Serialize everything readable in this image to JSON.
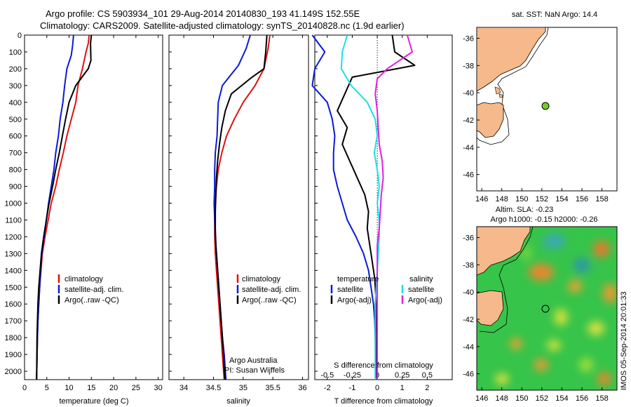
{
  "header": {
    "line1": "Argo profile: CS 5903934_101 29-Aug-2014 20140830_193 41.149S 152.55E",
    "line2": "Climatology: CARS2009. Satellite-adjusted climatology: synTS_20140828.nc (1.9d earlier)"
  },
  "colors": {
    "climatology": "#e01010",
    "satellite": "#0a1ad8",
    "argo": "#000000",
    "sat_salinity": "#18e0e8",
    "argo_salinity_diff": "#e020e0",
    "land": "#f5b98b"
  },
  "panels": {
    "temperature": {
      "xlabel": "temperature (deg C)",
      "legend": [
        "climatology",
        "satellite-adj. clim.",
        "Argo(..raw -QC)"
      ]
    },
    "salinity": {
      "xlabel": "salinity",
      "legend": [
        "climatology",
        "satellite-adj. clim.",
        "Argo(..raw -QC)"
      ],
      "note1": "Argo Australia",
      "note2": "PI: Susan Wijffels"
    },
    "difference": {
      "xlabel": "T difference from climatology",
      "toplabel": "S difference from climatology",
      "legend_t_head": "temperature",
      "legend_s_head": "salinity",
      "legend_t": [
        "satellite",
        "Argo(-adj)"
      ],
      "legend_s": [
        "satellite",
        "Argo(-adj)"
      ]
    }
  },
  "maps": {
    "sst": {
      "title": "sat. SST: NaN Argo: 14.4"
    },
    "sla": {
      "title1": "Altim. SLA: -0.23",
      "title2": "Argo h1000: -0.15 h2000: -0.26"
    },
    "xticks": [
      "146",
      "148",
      "150",
      "152",
      "154",
      "156",
      "158"
    ],
    "yticks": [
      "-36",
      "-38",
      "-40",
      "-42",
      "-44",
      "-46"
    ],
    "float_lon": 152.55,
    "float_lat": -41.149
  },
  "side_label": "IMOS 05-Sep-2014 20:01:33",
  "chart_data": [
    {
      "type": "line",
      "panel": "temperature",
      "ylabel": "",
      "xlim": [
        0,
        31
      ],
      "ylim": [
        2050,
        0
      ],
      "xticks": [
        0,
        5,
        10,
        15,
        20,
        25,
        30
      ],
      "yticks": [
        0,
        100,
        200,
        300,
        400,
        500,
        600,
        700,
        800,
        900,
        1000,
        1100,
        1200,
        1300,
        1400,
        1500,
        1600,
        1700,
        1800,
        1900,
        2000
      ],
      "series": [
        {
          "name": "climatology",
          "x": [
            14.5,
            14.3,
            13.8,
            13.0,
            12.0,
            11.5,
            10.5,
            9.5,
            8.7,
            7.8,
            7.0,
            6.0,
            5.3,
            4.6,
            4.0,
            3.7,
            3.4,
            3.2,
            3.0,
            2.9,
            2.7
          ],
          "y": [
            0,
            50,
            100,
            200,
            300,
            400,
            500,
            600,
            700,
            800,
            900,
            1000,
            1100,
            1200,
            1300,
            1400,
            1500,
            1600,
            1700,
            1800,
            2050
          ]
        },
        {
          "name": "satellite-adj. clim.",
          "x": [
            11.0,
            10.8,
            10.5,
            9.5,
            9.0,
            8.6,
            8.0,
            7.6,
            7.0,
            6.6,
            6.0,
            5.4,
            4.9,
            4.4,
            3.9,
            3.6,
            3.4,
            3.2,
            3.0,
            2.9,
            2.7
          ],
          "y": [
            0,
            60,
            120,
            200,
            300,
            400,
            500,
            600,
            700,
            800,
            900,
            1000,
            1100,
            1200,
            1300,
            1400,
            1500,
            1600,
            1700,
            1800,
            2050
          ]
        },
        {
          "name": "Argo(..raw -QC)",
          "x": [
            15.0,
            14.8,
            14.9,
            14.3,
            11.5,
            10.0,
            9.2,
            8.5,
            7.8,
            7.0,
            6.3,
            5.5,
            4.9,
            4.3,
            3.8,
            3.5,
            3.2,
            3.0,
            2.9,
            2.8,
            2.7
          ],
          "y": [
            0,
            50,
            150,
            200,
            300,
            400,
            500,
            600,
            700,
            800,
            900,
            1000,
            1100,
            1200,
            1300,
            1400,
            1500,
            1600,
            1700,
            1800,
            2050
          ]
        }
      ]
    },
    {
      "type": "line",
      "panel": "salinity",
      "ylabel": "",
      "xlim": [
        33.75,
        36.1
      ],
      "ylim": [
        2050,
        0
      ],
      "xticks": [
        34,
        34.5,
        35,
        35.5,
        36
      ],
      "series": [
        {
          "name": "climatology",
          "x": [
            35.45,
            35.42,
            35.35,
            35.2,
            35.0,
            34.85,
            34.72,
            34.64,
            34.58,
            34.55,
            34.53,
            34.52,
            34.52,
            34.53,
            34.55,
            34.57,
            34.59,
            34.61,
            34.63,
            34.65,
            34.68
          ],
          "y": [
            0,
            80,
            200,
            300,
            400,
            500,
            600,
            700,
            800,
            900,
            1000,
            1100,
            1200,
            1300,
            1400,
            1500,
            1600,
            1700,
            1800,
            1900,
            2050
          ]
        },
        {
          "name": "satellite-adj. clim.",
          "x": [
            35.12,
            35.05,
            34.92,
            34.65,
            34.58,
            34.57,
            34.56,
            34.53,
            34.52,
            34.52,
            34.51,
            34.52,
            34.53,
            34.55,
            34.57,
            34.59,
            34.61,
            34.63,
            34.65,
            34.68,
            34.71
          ],
          "y": [
            0,
            80,
            180,
            300,
            400,
            500,
            600,
            700,
            800,
            900,
            1000,
            1100,
            1200,
            1300,
            1400,
            1500,
            1600,
            1700,
            1800,
            1900,
            2050
          ]
        },
        {
          "name": "Argo(..raw -QC)",
          "x": [
            35.4,
            35.38,
            35.35,
            35.15,
            34.8,
            34.7,
            34.64,
            34.6,
            34.57,
            34.55,
            34.54,
            34.53,
            34.53,
            34.54,
            34.56,
            34.58,
            34.6,
            34.62,
            34.64,
            34.66,
            34.69
          ],
          "y": [
            0,
            100,
            200,
            250,
            350,
            450,
            550,
            650,
            750,
            850,
            950,
            1050,
            1150,
            1250,
            1350,
            1450,
            1550,
            1650,
            1750,
            1850,
            2050
          ]
        }
      ]
    },
    {
      "type": "line",
      "panel": "difference",
      "xlim": [
        -2.5,
        3.0
      ],
      "ylim": [
        2050,
        0
      ],
      "xticks": [
        -2,
        -1,
        0,
        1,
        2
      ],
      "sticks": [
        -0.5,
        -0.25,
        0,
        0.25,
        0.5
      ],
      "series": [
        {
          "name": "temperature satellite",
          "x": [
            -2.6,
            -2.1,
            -2.5,
            -2.6,
            -2.0,
            -1.8,
            -1.7,
            -1.75,
            -1.75,
            -1.6,
            -1.4,
            -1.2,
            -0.85,
            -0.55,
            -0.35,
            -0.25,
            -0.15,
            -0.1,
            -0.08,
            -0.05,
            -0.02
          ],
          "y": [
            0,
            100,
            200,
            300,
            400,
            500,
            600,
            700,
            800,
            900,
            1000,
            1100,
            1200,
            1300,
            1400,
            1500,
            1600,
            1700,
            1800,
            1900,
            2050
          ]
        },
        {
          "name": "temperature Argo(-adj)",
          "x": [
            0.6,
            0.7,
            1.5,
            -1.0,
            -1.3,
            -1.6,
            -1.2,
            -1.4,
            -1.1,
            -0.8,
            -0.5,
            -0.35,
            -0.4,
            -0.3,
            -0.2,
            -0.1,
            -0.06,
            -0.05,
            -0.03,
            -0.02,
            -0.01
          ],
          "y": [
            0,
            100,
            180,
            250,
            350,
            450,
            550,
            650,
            750,
            850,
            950,
            1050,
            1150,
            1250,
            1350,
            1450,
            1550,
            1650,
            1750,
            1850,
            2050
          ]
        },
        {
          "name": "salinity satellite",
          "x": [
            -0.3,
            -0.35,
            -0.36,
            -0.26,
            -0.1,
            -0.02,
            0.0,
            -0.03,
            0.0,
            0.02,
            0.0,
            0.02,
            0.02,
            0.01,
            0.0,
            -0.01,
            -0.02,
            -0.02,
            -0.02,
            -0.02,
            -0.02
          ],
          "y": [
            0,
            100,
            200,
            300,
            400,
            500,
            600,
            700,
            800,
            900,
            1000,
            1100,
            1200,
            1300,
            1400,
            1500,
            1600,
            1700,
            1800,
            1900,
            2050
          ]
        },
        {
          "name": "salinity Argo(-adj)",
          "x": [
            0.3,
            0.35,
            0.1,
            0.0,
            -0.02,
            0.0,
            0.01,
            0.02,
            0.05,
            0.06,
            0.04,
            0.03,
            0.02,
            0.0,
            0.0,
            0.0,
            0.0,
            0.0,
            0.0,
            0.0,
            0.0
          ],
          "y": [
            0,
            100,
            200,
            260,
            350,
            450,
            550,
            650,
            750,
            850,
            950,
            1050,
            1150,
            1250,
            1350,
            1450,
            1550,
            1650,
            1750,
            1850,
            2050
          ]
        }
      ]
    }
  ]
}
